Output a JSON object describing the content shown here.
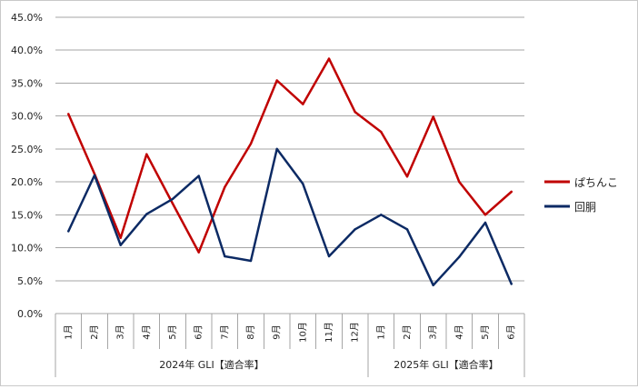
{
  "chart_data": {
    "type": "line",
    "categories": [
      "1月",
      "2月",
      "3月",
      "4月",
      "5月",
      "6月",
      "7月",
      "8月",
      "9月",
      "10月",
      "11月",
      "12月",
      "1月",
      "2月",
      "3月",
      "4月",
      "5月",
      "6月"
    ],
    "groups": [
      {
        "label": "2024年 GLI【適合率】",
        "start": 0,
        "end": 11
      },
      {
        "label": "2025年 GLI【適合率】",
        "start": 12,
        "end": 17
      }
    ],
    "series": [
      {
        "name": "ぱちんこ",
        "color": "#c00000",
        "values": [
          30.3,
          21.2,
          11.5,
          24.2,
          16.7,
          9.3,
          19.2,
          25.8,
          35.4,
          31.8,
          38.7,
          30.6,
          27.6,
          20.8,
          29.9,
          20.0,
          15.0,
          18.5
        ]
      },
      {
        "name": "回胴",
        "color": "#0c2a64",
        "values": [
          12.5,
          21.0,
          10.4,
          15.1,
          17.4,
          20.9,
          8.7,
          8.0,
          25.0,
          19.7,
          8.7,
          12.8,
          15.0,
          12.8,
          4.3,
          8.6,
          13.8,
          4.5
        ]
      }
    ],
    "ylim": [
      0,
      45
    ],
    "yticks": [
      0,
      5,
      10,
      15,
      20,
      25,
      30,
      35,
      40,
      45
    ],
    "ytick_labels": [
      "0.0%",
      "5.0%",
      "10.0%",
      "15.0%",
      "20.0%",
      "25.0%",
      "30.0%",
      "35.0%",
      "40.0%",
      "45.0%"
    ],
    "grid": true,
    "legend_position": "right"
  }
}
